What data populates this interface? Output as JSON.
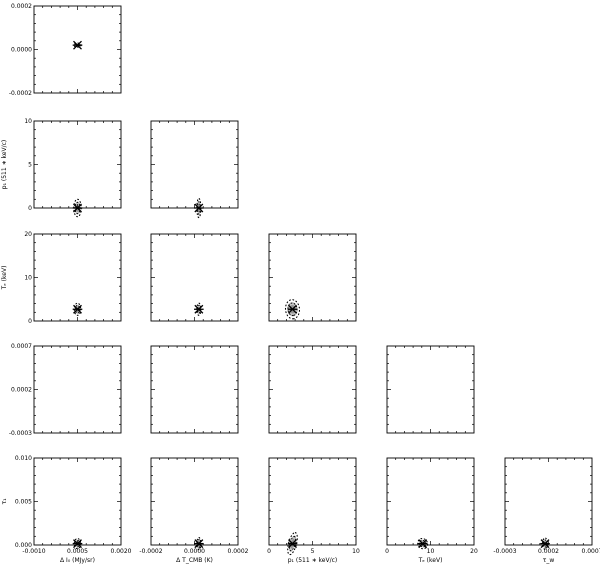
{
  "chart_data": {
    "type": "corner",
    "x_labels": [
      "Δ I₀ (MJy/sr)",
      "Δ T_CMB (K)",
      "p₁ (511 ∗ keV/c)",
      "Tₑ (keV)",
      "τ_w"
    ],
    "y_labels": [
      "",
      "p₁ (511 ∗ keV/c)",
      "Tₑ (keV)",
      "",
      "τ₁"
    ],
    "columns": [
      {
        "xlim": [
          -0.001,
          0.002
        ],
        "ticks": [
          -0.001,
          0.0005,
          0.002
        ],
        "tick_labels": [
          "-0.0010",
          "0.0005",
          "0.0020"
        ]
      },
      {
        "xlim": [
          -0.0002,
          0.0002
        ],
        "ticks": [
          -0.0002,
          0.0,
          0.0002
        ],
        "tick_labels": [
          "-0.0002",
          "0.0000",
          "0.0002"
        ]
      },
      {
        "xlim": [
          0,
          10
        ],
        "ticks": [
          0,
          5,
          10
        ],
        "tick_labels": [
          "0",
          "5",
          "10"
        ]
      },
      {
        "xlim": [
          0,
          20
        ],
        "ticks": [
          0,
          10,
          20
        ],
        "tick_labels": [
          "0",
          "10",
          "20"
        ]
      },
      {
        "xlim": [
          -0.0003,
          0.0007
        ],
        "ticks": [
          -0.0003,
          0.0002,
          0.0007
        ],
        "tick_labels": [
          "-0.0003",
          "0.0002",
          "0.0007"
        ]
      }
    ],
    "rows": [
      {
        "ylim": [
          -0.0002,
          0.0002
        ],
        "ticks": [
          -0.0002,
          0.0,
          0.0002
        ],
        "tick_labels": [
          "-0.0002",
          "0.0000",
          "0.0002"
        ]
      },
      {
        "ylim": [
          0,
          10
        ],
        "ticks": [
          0,
          5,
          10
        ],
        "tick_labels": [
          "0",
          "5",
          "10"
        ]
      },
      {
        "ylim": [
          0,
          20
        ],
        "ticks": [
          0,
          10,
          20
        ],
        "tick_labels": [
          "0",
          "10",
          "20"
        ]
      },
      {
        "ylim": [
          -0.0003,
          0.0007
        ],
        "ticks": [
          -0.0003,
          0.0002,
          0.0007
        ],
        "tick_labels": [
          "-0.0003",
          "0.0002",
          "0.0007"
        ]
      },
      {
        "ylim": [
          0.0,
          0.01
        ],
        "ticks": [
          0.0,
          0.005,
          0.01
        ],
        "tick_labels": [
          "0.000",
          "0.005",
          "0.010"
        ]
      }
    ],
    "best_fit": [
      0.0005,
      2e-05,
      2.7,
      8.2,
      0.00016
    ],
    "panels": [
      {
        "row": 0,
        "col": 0,
        "spread": [
          0.00012,
          9.5e-06
        ]
      },
      {
        "row": 1,
        "col": 0,
        "spread": [
          0.00013,
          1.0
        ]
      },
      {
        "row": 1,
        "col": 1,
        "spread": [
          8.5e-06,
          1.1
        ]
      },
      {
        "row": 2,
        "col": 0,
        "spread": [
          0.00011,
          1.4
        ]
      },
      {
        "row": 2,
        "col": 1,
        "spread": [
          7.5e-06,
          1.4
        ]
      },
      {
        "row": 2,
        "col": 2,
        "spread": [
          1.1,
          1.6
        ]
      },
      {
        "row": 3,
        "col": 0,
        "spread": [
          0.0001,
          1.8e-05
        ]
      },
      {
        "row": 3,
        "col": 1,
        "spread": [
          7e-06,
          1.8e-05
        ]
      },
      {
        "row": 3,
        "col": 2,
        "spread": [
          1.2,
          2.2e-05
        ]
      },
      {
        "row": 3,
        "col": 3,
        "spread": [
          2.0,
          1.5e-05
        ]
      },
      {
        "row": 4,
        "col": 0,
        "spread": [
          0.00011,
          0.00058
        ]
      },
      {
        "row": 4,
        "col": 1,
        "spread": [
          7.5e-06,
          0.0007
        ]
      },
      {
        "row": 4,
        "col": 2,
        "spread": [
          1.3,
          0.00045
        ]
      },
      {
        "row": 4,
        "col": 3,
        "spread": [
          1.2,
          0.00055
        ]
      },
      {
        "row": 4,
        "col": 4,
        "spread": [
          2.8e-05,
          0.00065
        ]
      }
    ]
  }
}
